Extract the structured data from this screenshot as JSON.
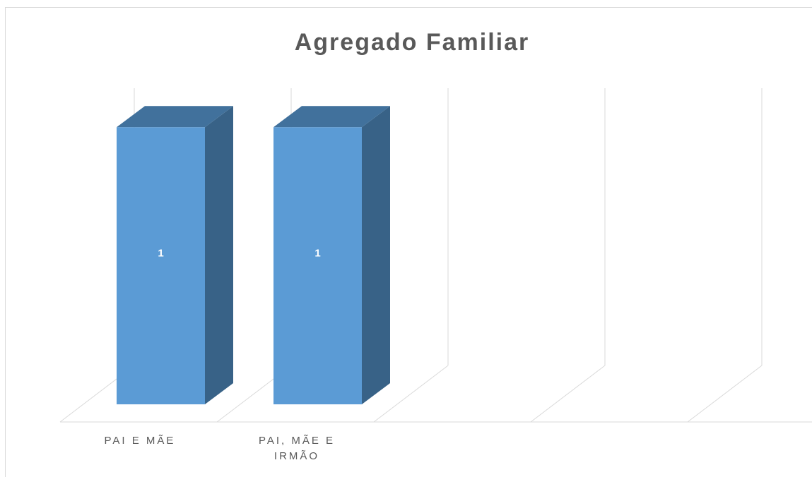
{
  "chart_data": {
    "type": "bar3d",
    "title": "Agregado Familiar",
    "categories": [
      "PAI E MÃE",
      "PAI, MÃE E IRMÃO",
      null,
      null,
      null
    ],
    "values": [
      1,
      1,
      null,
      null,
      null
    ],
    "color": "#5b9bd5",
    "ylim": [
      0,
      1.1
    ]
  }
}
